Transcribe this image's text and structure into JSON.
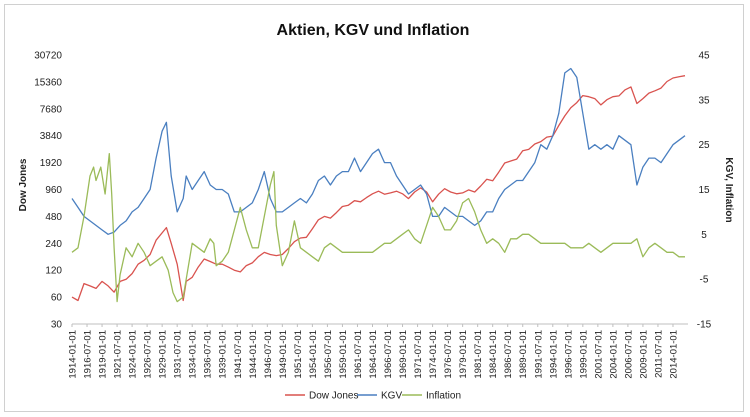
{
  "chart_data": {
    "type": "line",
    "title": "Aktien, KGV und Inflation",
    "ylabel_left": "Dow Jones",
    "ylabel_right": "KGV, Inflation",
    "y_left_scale": "log2",
    "y_left_ticks": [
      "30",
      "60",
      "120",
      "240",
      "480",
      "960",
      "1920",
      "3840",
      "7680",
      "15360",
      "30720"
    ],
    "y_left_range": [
      30,
      30720
    ],
    "y_right_ticks": [
      "-15",
      "-5",
      "5",
      "15",
      "25",
      "35",
      "45"
    ],
    "y_right_range": [
      -15,
      45
    ],
    "x_range": [
      1914,
      2016.5
    ],
    "x_ticks": [
      "1914-01-01",
      "1916-07-01",
      "1919-01-01",
      "1921-07-01",
      "1924-01-01",
      "1926-07-01",
      "1929-01-01",
      "1931-07-01",
      "1934-01-01",
      "1936-07-01",
      "1939-01-01",
      "1941-07-01",
      "1944-01-01",
      "1946-07-01",
      "1949-01-01",
      "1951-07-01",
      "1954-01-01",
      "1956-07-01",
      "1959-01-01",
      "1961-07-01",
      "1964-01-01",
      "1966-07-01",
      "1969-01-01",
      "1971-07-01",
      "1974-01-01",
      "1976-07-01",
      "1979-01-01",
      "1981-07-01",
      "1984-01-01",
      "1986-07-01",
      "1989-01-01",
      "1991-07-01",
      "1994-01-01",
      "1996-07-01",
      "1999-01-01",
      "2001-07-01",
      "2004-01-01",
      "2006-07-01",
      "2009-01-01",
      "2011-07-01",
      "2014-01-01"
    ],
    "grid": false,
    "legend_position": "bottom",
    "series": [
      {
        "name": "Dow Jones",
        "color": "#d9534f",
        "axis": "left",
        "x": [
          1914,
          1915,
          1916,
          1917,
          1918,
          1919,
          1920,
          1921,
          1922,
          1923,
          1924,
          1925,
          1926,
          1927,
          1928,
          1929.7,
          1930.5,
          1931.5,
          1932.5,
          1933,
          1934,
          1935,
          1936,
          1937,
          1938,
          1939,
          1940,
          1941,
          1942,
          1943,
          1944,
          1945,
          1946,
          1947,
          1948,
          1949,
          1950,
          1951,
          1952,
          1953,
          1954,
          1955,
          1956,
          1957,
          1958,
          1959,
          1960,
          1961,
          1962,
          1963,
          1964,
          1965,
          1966,
          1967,
          1968,
          1969,
          1970,
          1971,
          1972,
          1973,
          1974,
          1975,
          1976,
          1977,
          1978,
          1979,
          1980,
          1981,
          1982,
          1983,
          1984,
          1985,
          1986,
          1987,
          1988,
          1989,
          1990,
          1991,
          1992,
          1993,
          1994,
          1995,
          1996,
          1997,
          1998,
          1999,
          2000,
          2001,
          2002,
          2003,
          2004,
          2005,
          2006,
          2007,
          2008,
          2009,
          2010,
          2011,
          2012,
          2013,
          2014,
          2015,
          2016
        ],
        "values": [
          60,
          55,
          85,
          80,
          75,
          90,
          80,
          68,
          90,
          95,
          110,
          140,
          155,
          180,
          260,
          360,
          240,
          140,
          55,
          90,
          100,
          130,
          160,
          150,
          140,
          140,
          130,
          120,
          115,
          135,
          145,
          170,
          190,
          180,
          175,
          180,
          210,
          250,
          275,
          280,
          350,
          440,
          480,
          460,
          530,
          620,
          640,
          720,
          700,
          780,
          860,
          920,
          850,
          880,
          920,
          860,
          760,
          900,
          1000,
          900,
          700,
          850,
          980,
          900,
          860,
          880,
          950,
          900,
          1050,
          1250,
          1200,
          1500,
          1900,
          2000,
          2100,
          2600,
          2700,
          3100,
          3300,
          3700,
          3800,
          5000,
          6400,
          7900,
          9000,
          10800,
          10500,
          10000,
          8500,
          9700,
          10500,
          10700,
          12500,
          13500,
          8800,
          10000,
          11500,
          12200,
          13100,
          15500,
          17000,
          17500,
          18000
        ]
      },
      {
        "name": "KGV",
        "color": "#4a7fc0",
        "axis": "right",
        "x": [
          1914,
          1915,
          1916,
          1917,
          1918,
          1919,
          1920,
          1921,
          1922,
          1923,
          1924,
          1925,
          1926,
          1927,
          1928,
          1929,
          1929.7,
          1930.5,
          1931.5,
          1932.5,
          1933,
          1934,
          1935,
          1936,
          1937,
          1938,
          1939,
          1940,
          1941,
          1942,
          1943,
          1944,
          1945,
          1946,
          1947,
          1948,
          1949,
          1950,
          1951,
          1952,
          1953,
          1954,
          1955,
          1956,
          1957,
          1958,
          1959,
          1960,
          1961,
          1962,
          1963,
          1964,
          1965,
          1966,
          1967,
          1968,
          1969,
          1970,
          1971,
          1972,
          1973,
          1974,
          1975,
          1976,
          1977,
          1978,
          1979,
          1980,
          1981,
          1982,
          1983,
          1984,
          1985,
          1986,
          1987,
          1988,
          1989,
          1990,
          1991,
          1992,
          1993,
          1994,
          1995,
          1996,
          1997,
          1998,
          1999,
          2000,
          2001,
          2002,
          2003,
          2004,
          2005,
          2006,
          2007,
          2008,
          2009,
          2010,
          2011,
          2012,
          2013,
          2014,
          2015,
          2016
        ],
        "values": [
          13,
          11,
          9,
          8,
          7,
          6,
          5,
          5.5,
          7,
          8,
          10,
          11,
          13,
          15,
          22,
          28,
          30,
          18,
          10,
          13,
          18,
          15,
          17,
          19,
          16,
          15,
          15,
          14,
          10,
          10,
          11,
          12,
          15,
          19,
          13,
          10,
          10,
          11,
          12,
          13,
          12,
          14,
          17,
          18,
          16,
          18,
          19,
          19,
          22,
          19,
          21,
          23,
          24,
          21,
          21,
          18,
          16,
          14,
          15,
          16,
          14,
          9,
          9,
          11,
          10,
          9,
          9,
          8,
          7,
          8,
          10,
          10,
          13,
          15,
          16,
          17,
          17,
          19,
          21,
          25,
          24,
          27,
          32,
          41,
          42,
          40,
          32,
          24,
          25,
          24,
          25,
          24,
          27,
          26,
          25,
          16,
          20,
          22,
          22,
          21,
          23,
          25,
          26,
          27
        ]
      },
      {
        "name": "Inflation",
        "color": "#9bbb59",
        "axis": "right",
        "x": [
          1914,
          1915,
          1916,
          1917,
          1917.6,
          1918,
          1918.8,
          1919.5,
          1920.2,
          1920.6,
          1921,
          1921.5,
          1922,
          1923,
          1924,
          1925,
          1926,
          1927,
          1928,
          1929,
          1930,
          1930.8,
          1931.5,
          1932.5,
          1933,
          1934,
          1935,
          1936,
          1937,
          1937.6,
          1938,
          1939,
          1940,
          1941,
          1942,
          1943,
          1944,
          1945,
          1946,
          1947,
          1947.6,
          1948,
          1949,
          1950,
          1951,
          1952,
          1953,
          1954,
          1955,
          1956,
          1957,
          1958,
          1959,
          1960,
          1961,
          1962,
          1963,
          1964,
          1965,
          1966,
          1967,
          1968,
          1969,
          1970,
          1971,
          1972,
          1973,
          1974,
          1975,
          1976,
          1977,
          1978,
          1979,
          1980,
          1981,
          1982,
          1983,
          1984,
          1985,
          1986,
          1987,
          1988,
          1989,
          1990,
          1991,
          1992,
          1993,
          1994,
          1995,
          1996,
          1997,
          1998,
          1999,
          2000,
          2001,
          2002,
          2003,
          2004,
          2005,
          2006,
          2007,
          2008,
          2009,
          2010,
          2011,
          2012,
          2013,
          2014,
          2015,
          2016
        ],
        "values": [
          1,
          2,
          9,
          18,
          20,
          17,
          20,
          14,
          23,
          14,
          2,
          -10,
          -4,
          2,
          0,
          3,
          1,
          -2,
          -1,
          0,
          -3,
          -8,
          -10,
          -9,
          -5,
          3,
          2,
          1,
          4,
          3,
          -2,
          -1,
          1,
          6,
          11,
          6,
          2,
          2,
          9,
          16,
          19,
          7,
          -2,
          1,
          8,
          2,
          1,
          0,
          -1,
          2,
          3,
          2,
          1,
          1,
          1,
          1,
          1,
          1,
          2,
          3,
          3,
          4,
          5,
          6,
          4,
          3,
          7,
          11,
          9,
          6,
          6,
          8,
          12,
          13,
          10,
          6,
          3,
          4,
          3,
          1,
          4,
          4,
          5,
          5,
          4,
          3,
          3,
          3,
          3,
          3,
          2,
          2,
          2,
          3,
          2,
          1,
          2,
          3,
          3,
          3,
          3,
          4,
          0,
          2,
          3,
          2,
          1,
          1,
          0,
          0
        ]
      }
    ]
  }
}
